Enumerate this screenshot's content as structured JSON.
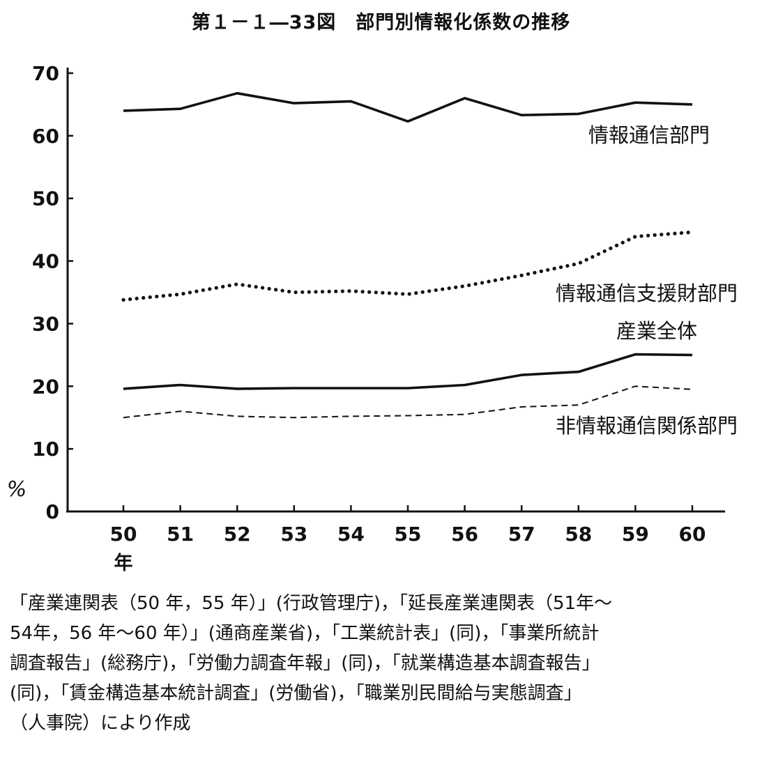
{
  "title": "第１－１―33図　部門別情報化係数の推移",
  "chart_data": {
    "type": "line",
    "title": "第１－１―33図　部門別情報化係数の推移",
    "ylabel": "%",
    "xlabel": "年",
    "ylim": [
      0,
      70
    ],
    "yticks": [
      0,
      10,
      20,
      30,
      40,
      50,
      60,
      70
    ],
    "x": [
      "50",
      "51",
      "52",
      "53",
      "54",
      "55",
      "56",
      "57",
      "58",
      "59",
      "60"
    ],
    "grid": false,
    "legend": "inline labels next to each line",
    "series": [
      {
        "name": "情報通信部門",
        "style": "solid",
        "values": [
          64.0,
          64.3,
          66.8,
          65.2,
          65.5,
          62.3,
          66.0,
          63.3,
          63.5,
          65.3,
          65.0
        ]
      },
      {
        "name": "情報通信支援財部門",
        "style": "dotted",
        "values": [
          33.8,
          34.7,
          36.3,
          35.0,
          35.2,
          34.7,
          36.0,
          37.7,
          39.6,
          43.9,
          44.6
        ]
      },
      {
        "name": "産業全体",
        "style": "solid",
        "values": [
          19.6,
          20.2,
          19.6,
          19.7,
          19.7,
          19.7,
          20.2,
          21.8,
          22.3,
          25.1,
          25.0
        ]
      },
      {
        "name": "非情報通信関係部門",
        "style": "dashed",
        "values": [
          15.0,
          16.0,
          15.2,
          15.0,
          15.2,
          15.3,
          15.5,
          16.7,
          17.0,
          20.0,
          19.5
        ]
      }
    ]
  },
  "source_lines": [
    "「産業連関表（50 年，55 年）」(行政管理庁)，「延長産業連関表（51年～",
    "54年，56 年～60 年）」(通商産業省)，「工業統計表」(同)，「事業所統計",
    "調査報告」(総務庁)，「労働力調査年報」(同)，「就業構造基本調査報告」",
    "(同)，「賃金構造基本統計調査」(労働省)，「職業別民間給与実態調査」",
    "（人事院）により作成"
  ]
}
